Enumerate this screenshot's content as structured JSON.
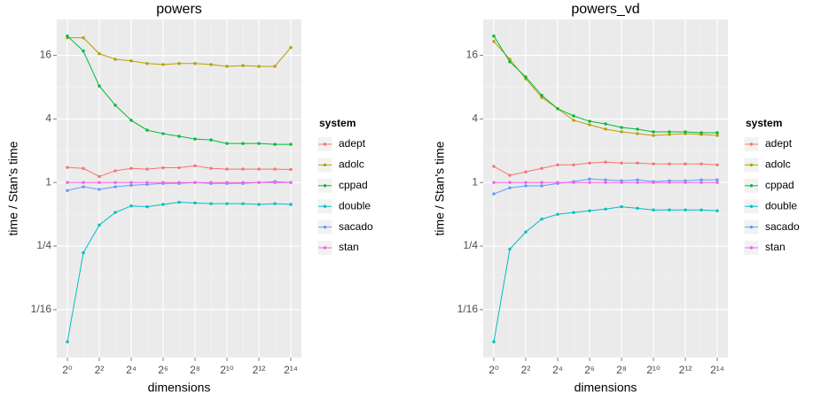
{
  "chart_data": [
    {
      "type": "line",
      "title": "powers",
      "x_label": "dimensions",
      "y_label": "time / Stan's time",
      "legend_title": "system",
      "log_x": true,
      "log_y": true,
      "grid": true,
      "legend": "right",
      "x": [
        1,
        2,
        4,
        8,
        16,
        32,
        64,
        128,
        256,
        512,
        1024,
        2048,
        4096,
        8192,
        16384
      ],
      "xlim": [
        0.63,
        26000
      ],
      "xticks": [
        {
          "value": 1,
          "label": "2⁰"
        },
        {
          "value": 4,
          "label": "2²"
        },
        {
          "value": 16,
          "label": "2⁴"
        },
        {
          "value": 64,
          "label": "2⁶"
        },
        {
          "value": 256,
          "label": "2⁸"
        },
        {
          "value": 1024,
          "label": "2¹⁰"
        },
        {
          "value": 4096,
          "label": "2¹²"
        },
        {
          "value": 16384,
          "label": "2¹⁴"
        }
      ],
      "ylim": [
        0.022,
        35
      ],
      "yticks": [
        {
          "value": 0.0625,
          "label": "1/16"
        },
        {
          "value": 0.25,
          "label": "1/4"
        },
        1,
        4,
        16
      ],
      "series": [
        {
          "name": "adept",
          "color": "#F8766D",
          "values": [
            1.39,
            1.36,
            1.14,
            1.29,
            1.36,
            1.34,
            1.38,
            1.38,
            1.44,
            1.36,
            1.34,
            1.34,
            1.34,
            1.34,
            1.33
          ]
        },
        {
          "name": "adolc",
          "color": "#B79F00",
          "values": [
            23.5,
            23.5,
            16.6,
            14.7,
            14.2,
            13.4,
            13.1,
            13.4,
            13.4,
            13.1,
            12.6,
            12.8,
            12.6,
            12.6,
            19.0
          ]
        },
        {
          "name": "cppad",
          "color": "#00BA38",
          "values": [
            24.4,
            17.6,
            8.2,
            5.4,
            3.88,
            3.13,
            2.9,
            2.74,
            2.58,
            2.53,
            2.34,
            2.34,
            2.34,
            2.3,
            2.3
          ]
        },
        {
          "name": "double",
          "color": "#00BFC4",
          "values": [
            0.031,
            0.216,
            0.395,
            0.52,
            0.6,
            0.59,
            0.62,
            0.65,
            0.64,
            0.63,
            0.63,
            0.63,
            0.62,
            0.63,
            0.62
          ]
        },
        {
          "name": "sacado",
          "color": "#619CFF",
          "values": [
            0.84,
            0.91,
            0.86,
            0.91,
            0.94,
            0.96,
            0.98,
            0.98,
            1.0,
            0.98,
            0.98,
            0.98,
            1.0,
            1.02,
            1.0
          ]
        },
        {
          "name": "stan",
          "color": "#F564E3",
          "values": [
            1,
            1,
            1,
            1,
            1,
            1,
            1,
            1,
            1,
            1,
            1,
            1,
            1,
            1,
            1
          ]
        }
      ]
    },
    {
      "type": "line",
      "title": "powers_vd",
      "x_label": "dimensions",
      "y_label": "time / Stan's time",
      "legend_title": "system",
      "log_x": true,
      "log_y": true,
      "grid": true,
      "legend": "right",
      "x": [
        1,
        2,
        4,
        8,
        16,
        32,
        64,
        128,
        256,
        512,
        1024,
        2048,
        4096,
        8192,
        16384
      ],
      "xlim": [
        0.63,
        26000
      ],
      "xticks": [
        {
          "value": 1,
          "label": "2⁰"
        },
        {
          "value": 4,
          "label": "2²"
        },
        {
          "value": 16,
          "label": "2⁴"
        },
        {
          "value": 64,
          "label": "2⁶"
        },
        {
          "value": 256,
          "label": "2⁸"
        },
        {
          "value": 1024,
          "label": "2¹⁰"
        },
        {
          "value": 4096,
          "label": "2¹²"
        },
        {
          "value": 16384,
          "label": "2¹⁴"
        }
      ],
      "ylim": [
        0.022,
        35
      ],
      "yticks": [
        {
          "value": 0.0625,
          "label": "1/16"
        },
        {
          "value": 0.25,
          "label": "1/4"
        },
        1,
        4,
        16
      ],
      "series": [
        {
          "name": "adept",
          "color": "#F8766D",
          "values": [
            1.42,
            1.17,
            1.26,
            1.36,
            1.47,
            1.47,
            1.53,
            1.56,
            1.53,
            1.53,
            1.5,
            1.5,
            1.5,
            1.5,
            1.47
          ]
        },
        {
          "name": "adolc",
          "color": "#B79F00",
          "values": [
            21.7,
            14.7,
            9.6,
            6.4,
            5.0,
            3.88,
            3.52,
            3.2,
            3.02,
            2.9,
            2.79,
            2.85,
            2.9,
            2.85,
            2.79
          ]
        },
        {
          "name": "cppad",
          "color": "#00BA38",
          "values": [
            24.4,
            13.9,
            10.0,
            6.7,
            5.0,
            4.27,
            3.8,
            3.59,
            3.32,
            3.2,
            3.02,
            3.02,
            3.02,
            2.96,
            2.96
          ]
        },
        {
          "name": "double",
          "color": "#00BFC4",
          "values": [
            0.031,
            0.234,
            0.34,
            0.45,
            0.5,
            0.52,
            0.54,
            0.56,
            0.59,
            0.57,
            0.55,
            0.55,
            0.55,
            0.55,
            0.54
          ]
        },
        {
          "name": "sacado",
          "color": "#619CFF",
          "values": [
            0.78,
            0.89,
            0.93,
            0.93,
            0.98,
            1.02,
            1.08,
            1.06,
            1.04,
            1.06,
            1.02,
            1.04,
            1.04,
            1.06,
            1.06
          ]
        },
        {
          "name": "stan",
          "color": "#F564E3",
          "values": [
            1,
            1,
            1,
            1,
            1,
            1,
            1,
            1,
            1,
            1,
            1,
            1,
            1,
            1,
            1
          ]
        }
      ]
    }
  ]
}
